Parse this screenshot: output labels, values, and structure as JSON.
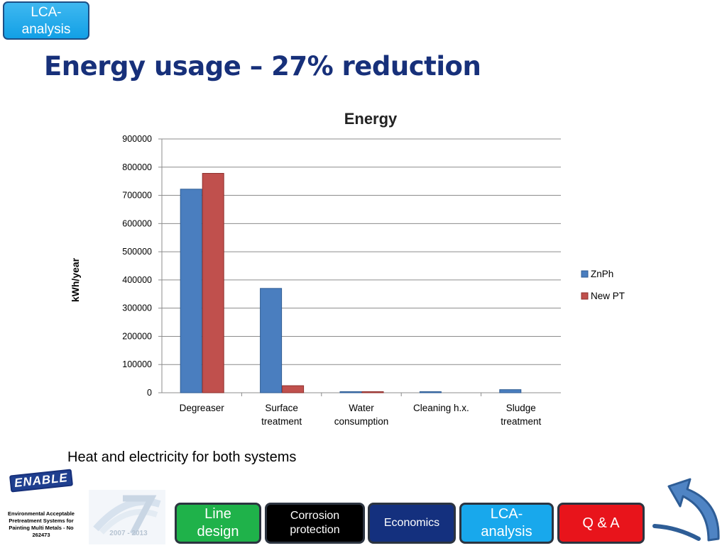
{
  "header": {
    "section_badge": "LCA-\nanalysis",
    "title": "Energy usage – 27% reduction"
  },
  "caption": "Heat and electricity for both systems",
  "chart_data": {
    "type": "bar",
    "title": "Energy",
    "xlabel": "",
    "ylabel": "kWh/year",
    "ylim": [
      0,
      900000
    ],
    "yticks": [
      0,
      100000,
      200000,
      300000,
      400000,
      500000,
      600000,
      700000,
      800000,
      900000
    ],
    "categories": [
      "Degreaser",
      "Surface\ntreatment",
      "Water\nconsumption",
      "Cleaning h.x.",
      "Sludge\ntreatment"
    ],
    "series": [
      {
        "name": "ZnPh",
        "color": "#4a7ebf",
        "values": [
          722000,
          370000,
          1500,
          1500,
          11000
        ]
      },
      {
        "name": "New PT",
        "color": "#c0504d",
        "values": [
          778000,
          25000,
          1500,
          0,
          0
        ]
      }
    ],
    "grid": true,
    "legend": "right"
  },
  "footer": {
    "logo_text": "ENABLE",
    "project_name": "Environmental Acceptable Pretreatment Systems for Painting Multi Metals - No 262473",
    "program_logo": "2007 - 2013",
    "nav": {
      "line_design": "Line\ndesign",
      "corrosion": "Corrosion\nprotection",
      "economics": "Economics",
      "lca": "LCA-\nanalysis",
      "qa": "Q & A"
    },
    "back_icon": "curved-back-arrow-icon"
  }
}
